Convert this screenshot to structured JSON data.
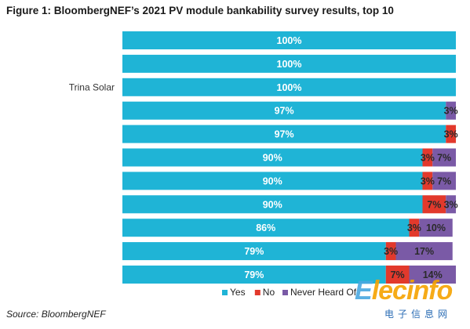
{
  "chart_data": {
    "type": "bar",
    "orientation": "horizontal",
    "stacked": true,
    "title": "Figure 1:  BloombergNEF’s 2021 PV module bankability survey results, top 10",
    "source": "Source: BloombergNEF",
    "categories": [
      "",
      "",
      "Trina Solar",
      "",
      "",
      "",
      "",
      "",
      "",
      "",
      ""
    ],
    "series": [
      {
        "name": "Yes",
        "color": "#1fb4d6",
        "values": [
          100,
          100,
          100,
          97,
          97,
          90,
          90,
          90,
          86,
          79,
          79
        ],
        "labels": [
          "100%",
          "100%",
          "100%",
          "97%",
          "97%",
          "90%",
          "90%",
          "90%",
          "86%",
          "79%",
          "79%"
        ]
      },
      {
        "name": "No",
        "color": "#e2392c",
        "values": [
          0,
          0,
          0,
          0,
          3,
          3,
          3,
          7,
          3,
          3,
          7
        ],
        "labels": [
          "",
          "",
          "",
          "",
          "3%",
          "3%",
          "3%",
          "7%",
          "3%",
          "3%",
          "7%"
        ]
      },
      {
        "name": "Never Heard Of",
        "color": "#7a5aa6",
        "values": [
          0,
          0,
          0,
          3,
          0,
          7,
          7,
          3,
          10,
          17,
          14
        ],
        "labels": [
          "",
          "",
          "",
          "3%",
          "",
          "7%",
          "7%",
          "3%",
          "10%",
          "17%",
          "14%"
        ]
      }
    ],
    "xlim": [
      0,
      100
    ],
    "legend": "bottom"
  },
  "watermark": {
    "brand": "Elecinfo",
    "subtitle": "电子信息网"
  }
}
